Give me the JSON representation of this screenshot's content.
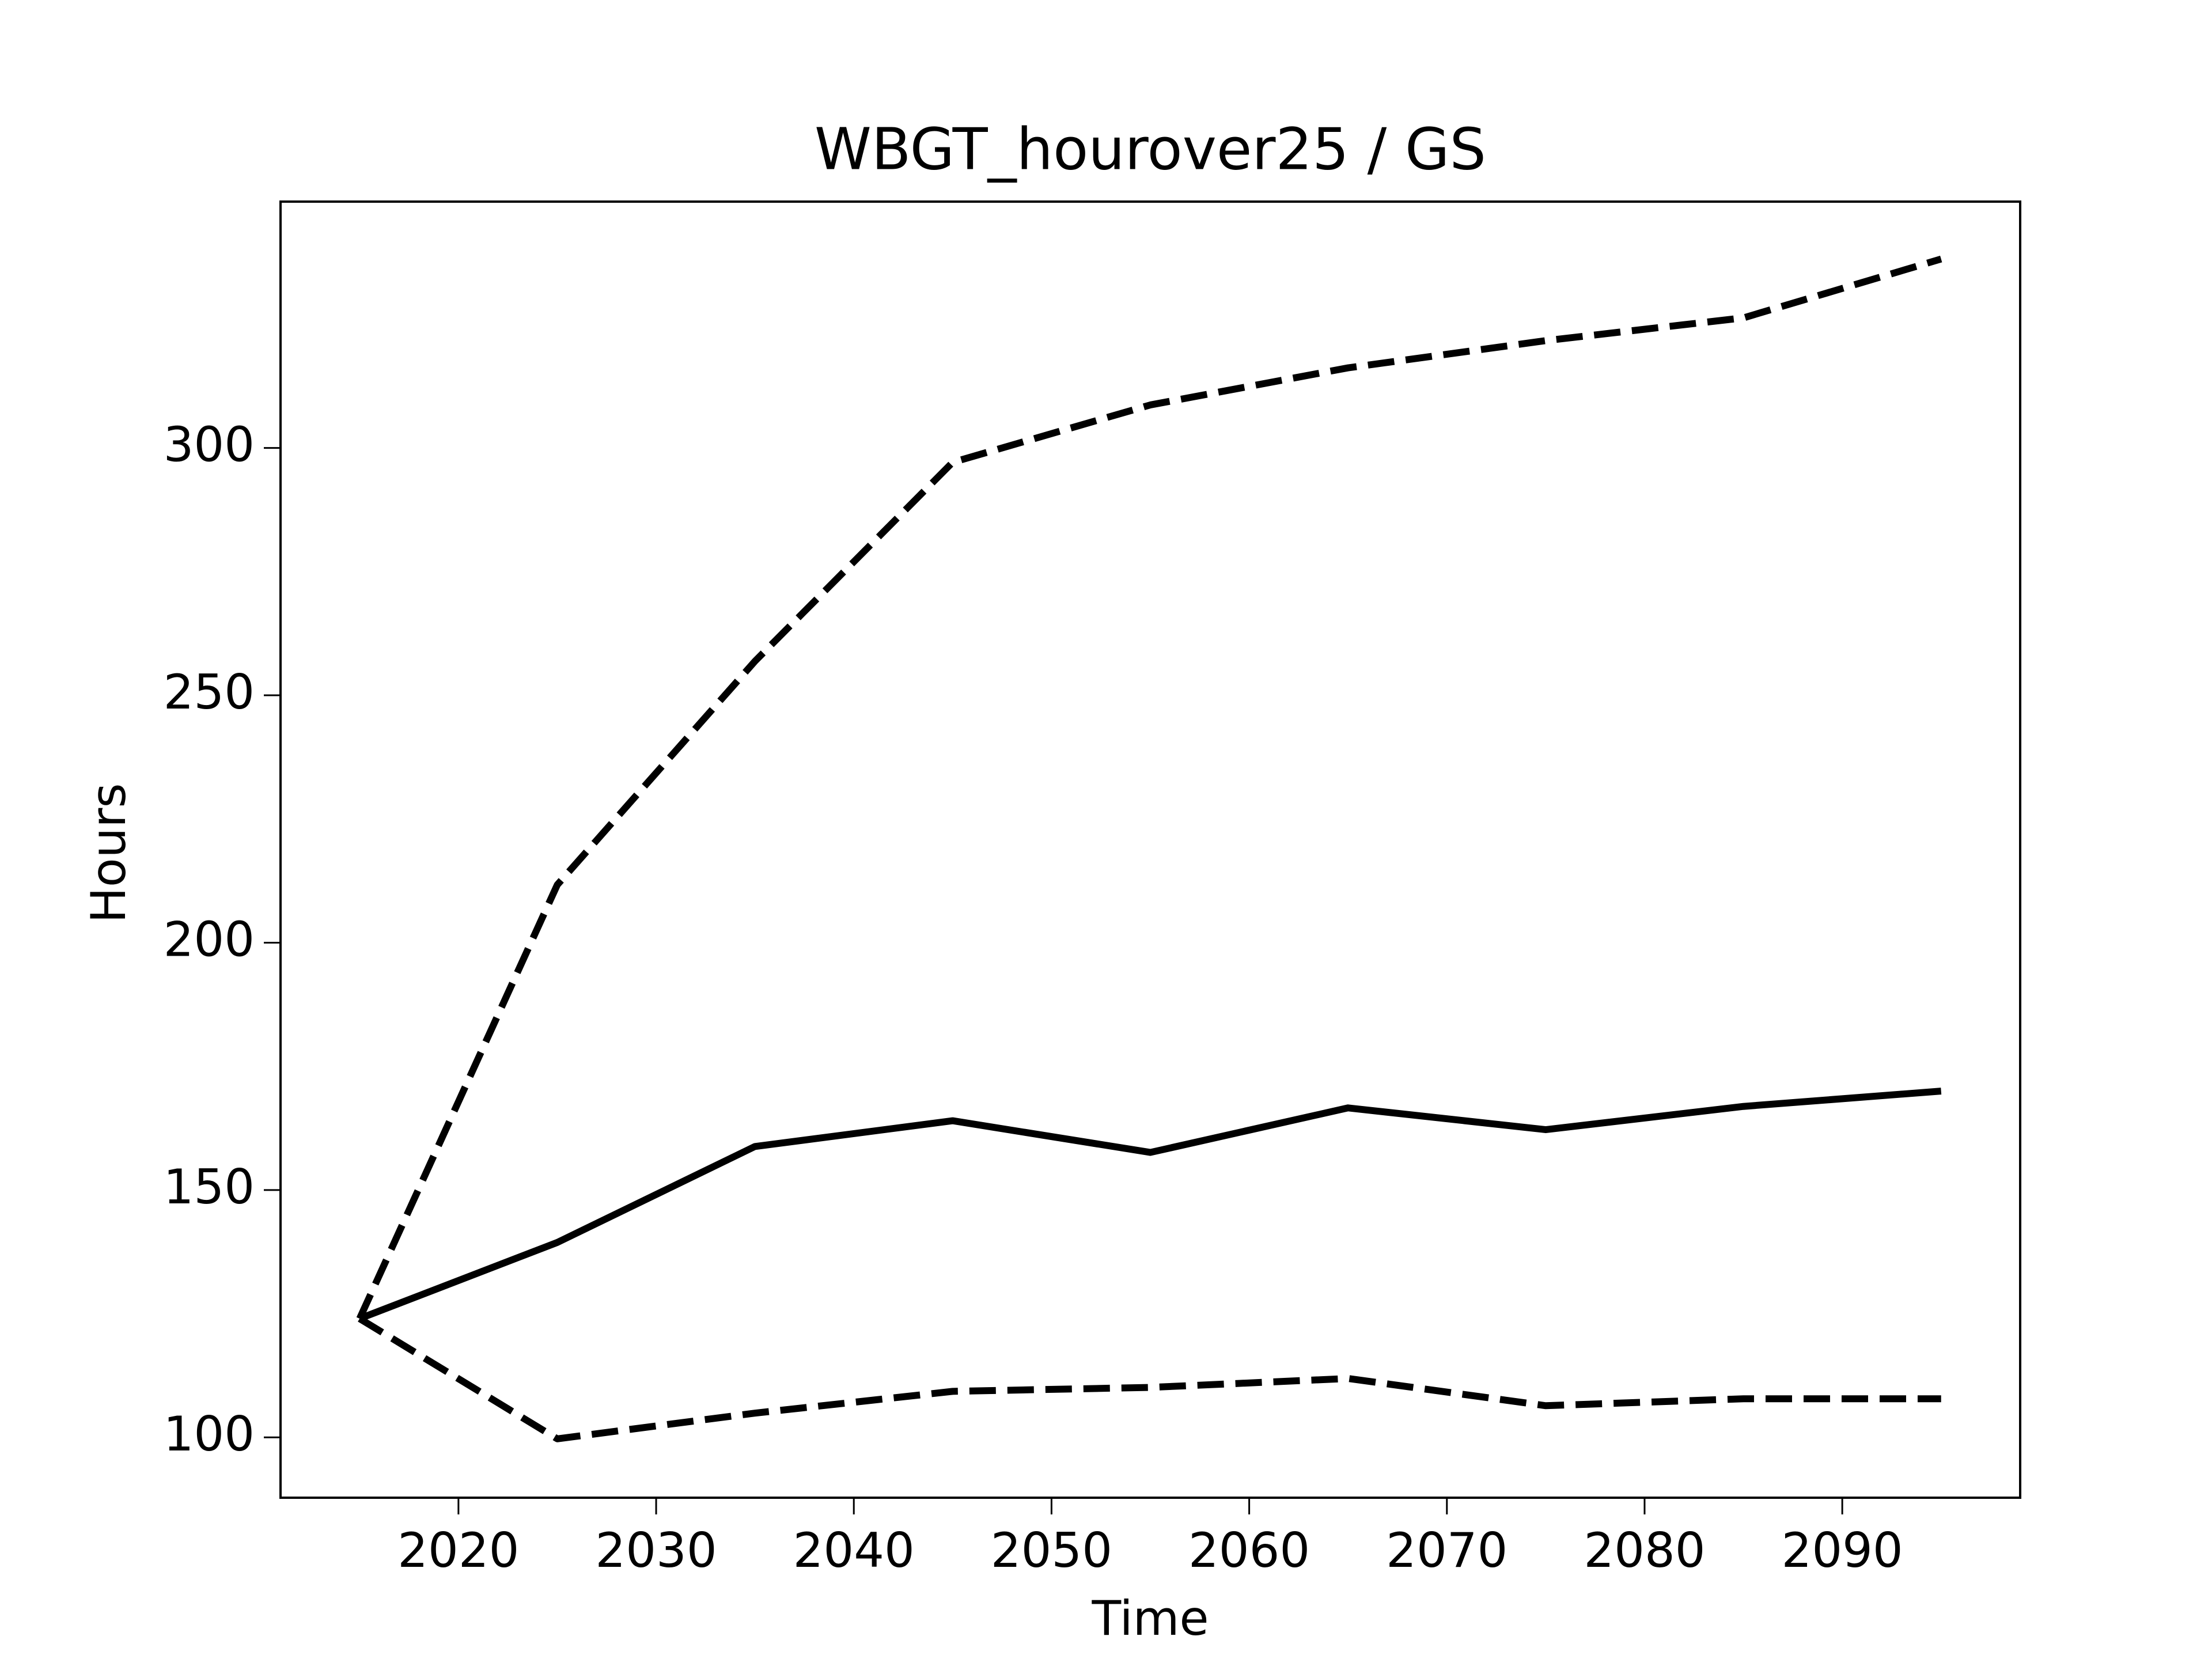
{
  "chart_data": {
    "type": "line",
    "title": "WBGT_hourover25 / GS",
    "xlabel": "Time",
    "ylabel": "Hours",
    "x": [
      2015,
      2025,
      2035,
      2045,
      2055,
      2065,
      2075,
      2085,
      2095
    ],
    "series": [
      {
        "color": "#000000",
        "dashed": false,
        "values": [
          124.0,
          139.4,
          158.8,
          164.0,
          157.6,
          166.6,
          162.2,
          166.9,
          170.0
        ]
      },
      {
        "color": "#000000",
        "dashed": true,
        "values": [
          124.0,
          211.7,
          256.9,
          297.1,
          308.7,
          316.2,
          321.7,
          326.3,
          338.2
        ]
      },
      {
        "color": "#000000",
        "dashed": true,
        "values": [
          124.0,
          99.7,
          104.9,
          109.3,
          110.1,
          111.9,
          106.4,
          107.8,
          107.8
        ]
      }
    ],
    "xlim": [
      2011,
      2099
    ],
    "xticks": [
      2020,
      2030,
      2040,
      2050,
      2060,
      2070,
      2080,
      2090
    ],
    "ylim": [
      87.8,
      349.8
    ],
    "yticks": [
      100,
      150,
      200,
      250,
      300
    ],
    "grid": false
  }
}
